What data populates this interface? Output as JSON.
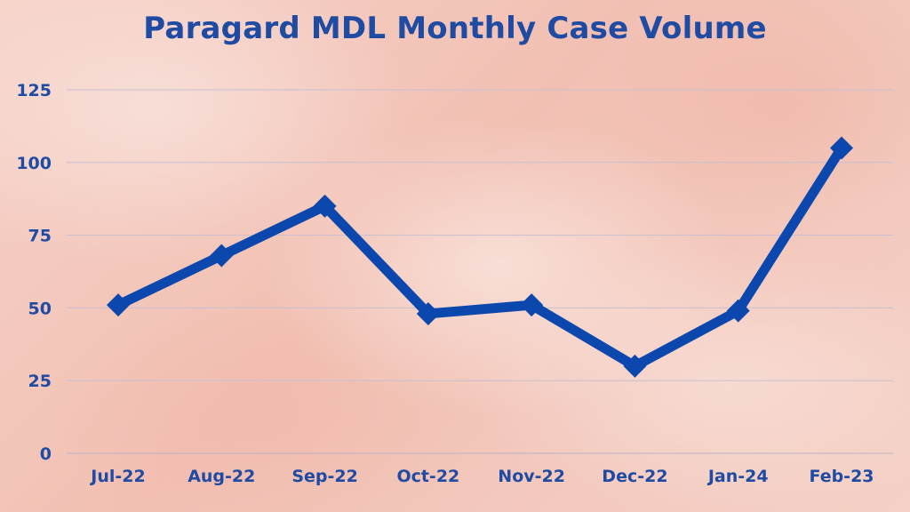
{
  "chart_data": {
    "type": "line",
    "title": "Paragard MDL Monthly Case Volume",
    "categories": [
      "Jul-22",
      "Aug-22",
      "Sep-22",
      "Oct-22",
      "Nov-22",
      "Dec-22",
      "Jan-24",
      "Feb-23"
    ],
    "series": [
      {
        "values": [
          51,
          68,
          85,
          48,
          51,
          30,
          49,
          105
        ]
      }
    ],
    "ylim": [
      0,
      125
    ],
    "yticks": [
      0,
      25,
      50,
      75,
      100,
      125
    ],
    "grid": true,
    "line_color": "#0b47ad",
    "text_color": "#1f4ba3"
  }
}
